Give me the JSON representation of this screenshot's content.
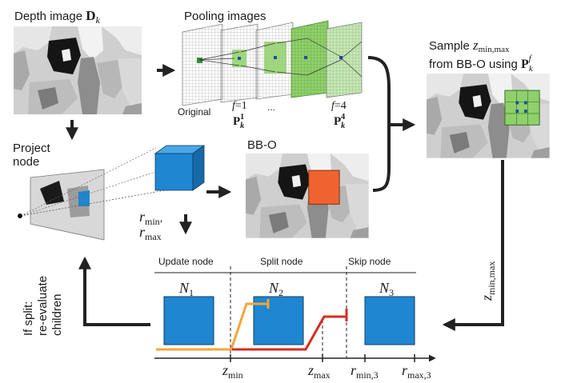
{
  "depth_image": {
    "label": "Depth image ",
    "symbol": "D",
    "sub": "k"
  },
  "pooling": {
    "title": "Pooling images",
    "original": "Original",
    "ellipsis": "...",
    "level1": {
      "f": "f",
      "eq": "=1",
      "P": "P",
      "sub": "k",
      "sup": "1"
    },
    "level4": {
      "f": "f",
      "eq": "=4",
      "P": "P",
      "sub": "k",
      "sup": "4"
    }
  },
  "sample": {
    "line1_prefix": "Sample ",
    "z": "z",
    "z_sub": "min,max",
    "line2_prefix": "from BB-O using ",
    "P": "P",
    "P_sub": "k",
    "P_sup": "f"
  },
  "project": {
    "line1": "Project",
    "line2": "node"
  },
  "bbo": {
    "label": "BB-O"
  },
  "rminmax": {
    "r1": "r",
    "r1_sub": "min",
    "r1_comma": ",",
    "r2": "r",
    "r2_sub": "max"
  },
  "zminmax_side": {
    "z": "z",
    "sub": "min,max"
  },
  "regions": {
    "update": "Update node",
    "split": "Split node",
    "skip": "Skip node"
  },
  "nodes": [
    {
      "N": "N",
      "sub": "1"
    },
    {
      "N": "N",
      "sub": "2"
    },
    {
      "N": "N",
      "sub": "3"
    }
  ],
  "axis": {
    "zmin": {
      "z": "z",
      "sub": "min"
    },
    "zmax": {
      "z": "z",
      "sub": "max"
    },
    "rmin3": {
      "r": "r",
      "sub": "min,3"
    },
    "rmax3": {
      "r": "r",
      "sub": "max,3"
    }
  },
  "reevaluate": {
    "line1": "If split:",
    "line2": "re-evaluate",
    "line3": "children"
  },
  "colors": {
    "node_blue": "#1f86d1",
    "pool_green": "#7dc85c",
    "bbo_orange": "#f0632f",
    "line_red": "#d62d22",
    "line_orange": "#f0a63a",
    "arrow": "#222222"
  }
}
